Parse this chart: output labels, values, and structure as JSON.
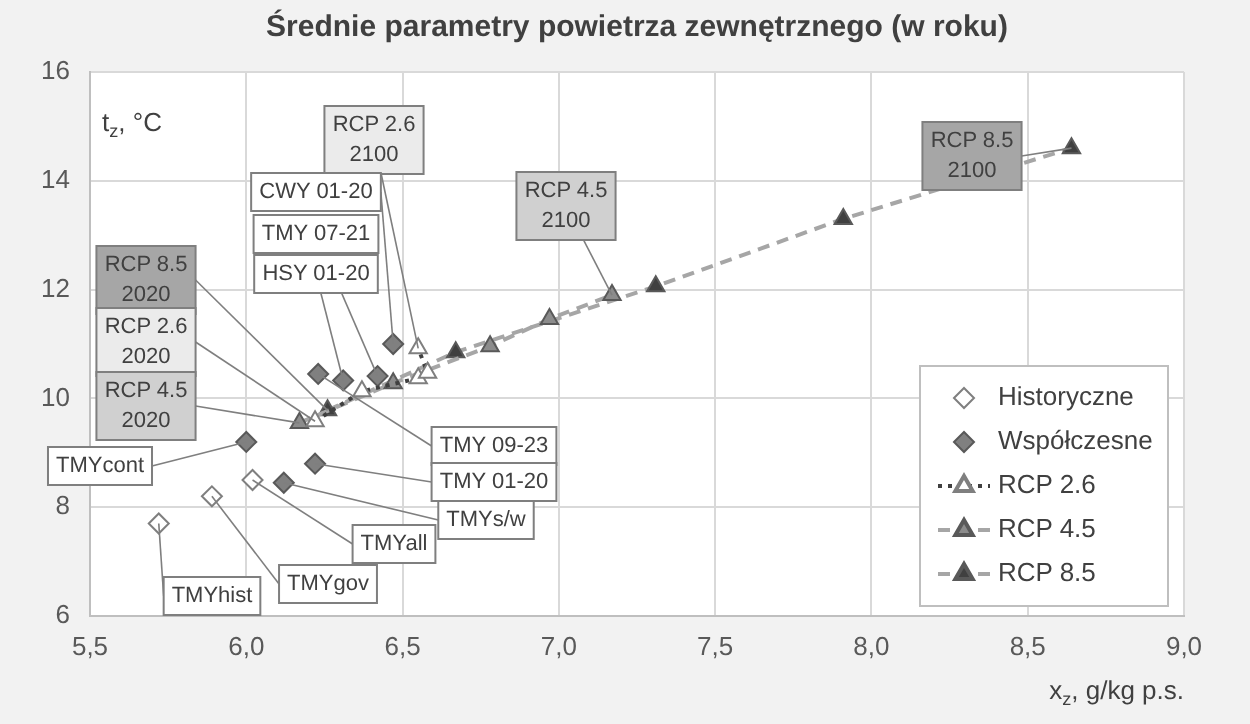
{
  "chart_data": {
    "type": "scatter",
    "title": "Średnie parametry powietrza zewnętrznego (w roku)",
    "xlabel": "x$_{z}$, g/kg p.s.",
    "ylabel": "t$_{z}$, °C",
    "xlim": [
      5.5,
      9.0
    ],
    "xticks": [
      {
        "value": 5.5,
        "label": "5,5"
      },
      {
        "value": 6.0,
        "label": "6,0"
      },
      {
        "value": 6.5,
        "label": "6,5"
      },
      {
        "value": 7.0,
        "label": "7,0"
      },
      {
        "value": 7.5,
        "label": "7,5"
      },
      {
        "value": 8.0,
        "label": "8,0"
      },
      {
        "value": 8.5,
        "label": "8,5"
      },
      {
        "value": 9.0,
        "label": "9,0"
      }
    ],
    "ylim": [
      6,
      16
    ],
    "yticks": [
      6,
      8,
      10,
      12,
      14,
      16
    ],
    "grid": true,
    "legend": "bottom right",
    "series": [
      {
        "name": "Historyczne",
        "type": "scatter",
        "marker": "diamond",
        "color": "#ffffff",
        "x": [
          5.72,
          5.89,
          6.02
        ],
        "values": [
          7.7,
          8.2,
          8.5
        ]
      },
      {
        "name": "Współczesne",
        "type": "scatter",
        "marker": "diamond",
        "color": "#808080",
        "x": [
          6.0,
          6.12,
          6.22,
          6.23,
          6.31,
          6.42,
          6.47
        ],
        "values": [
          9.2,
          8.45,
          8.8,
          10.45,
          10.33,
          10.41,
          11.0
        ]
      },
      {
        "name": "RCP 2.6",
        "type": "line",
        "marker": "triangle",
        "line_style": "dotted",
        "color": "#ffffff",
        "x": [
          6.22,
          6.37,
          6.55,
          6.58,
          6.55
        ],
        "values": [
          9.58,
          10.13,
          10.37,
          10.47,
          10.92
        ]
      },
      {
        "name": "RCP 4.5",
        "type": "line",
        "marker": "triangle",
        "line_style": "dashed",
        "color": "#8c8c8c",
        "x": [
          6.17,
          6.47,
          6.78,
          6.97,
          7.17
        ],
        "values": [
          9.55,
          10.28,
          10.96,
          11.46,
          11.9
        ]
      },
      {
        "name": "RCP 8.5",
        "type": "line",
        "marker": "triangle",
        "line_style": "dashed",
        "color": "#404040",
        "x": [
          6.26,
          6.67,
          7.31,
          7.91,
          8.64
        ],
        "values": [
          9.78,
          10.85,
          12.06,
          13.3,
          14.6
        ]
      }
    ],
    "annotations": [
      {
        "text": "RCP 8.5\n2100",
        "x": 8.64,
        "y": 14.6
      },
      {
        "text": "RCP 4.5\n2100",
        "x": 7.17,
        "y": 11.9
      },
      {
        "text": "RCP 2.6\n2100",
        "x": 6.55,
        "y": 10.92
      },
      {
        "text": "CWY 01-20",
        "x": 6.47,
        "y": 11.0
      },
      {
        "text": "TMY 07-21",
        "x": 6.42,
        "y": 10.41
      },
      {
        "text": "HSY 01-20",
        "x": 6.31,
        "y": 10.33
      },
      {
        "text": "RCP 8.5\n2020",
        "x": 6.26,
        "y": 9.78
      },
      {
        "text": "RCP 2.6\n2020",
        "x": 6.22,
        "y": 9.58
      },
      {
        "text": "RCP 4.5\n2020",
        "x": 6.17,
        "y": 9.55
      },
      {
        "text": "TMYcont",
        "x": 6.0,
        "y": 9.2
      },
      {
        "text": "TMY 09-23",
        "x": 6.23,
        "y": 10.45
      },
      {
        "text": "TMY 01-20",
        "x": 6.22,
        "y": 8.8
      },
      {
        "text": "TMYs/w",
        "x": 6.12,
        "y": 8.45
      },
      {
        "text": "TMYall",
        "x": 6.02,
        "y": 8.5
      },
      {
        "text": "TMYgov",
        "x": 5.89,
        "y": 8.2
      },
      {
        "text": "TMYhist",
        "x": 5.72,
        "y": 7.7
      }
    ]
  }
}
